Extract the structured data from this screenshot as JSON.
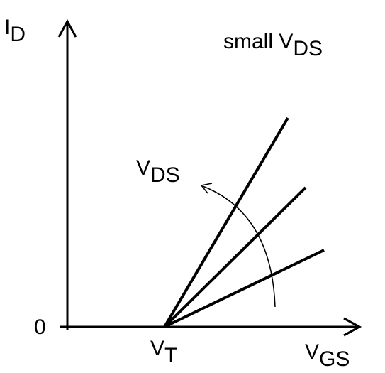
{
  "diagram": {
    "y_axis_label": {
      "main": "I",
      "sub": "D"
    },
    "x_axis_label": {
      "main": "V",
      "sub": "GS"
    },
    "threshold_label": {
      "main": "V",
      "sub": "T"
    },
    "origin_label": "0",
    "condition_label": {
      "prefix": "small V",
      "sub": "DS"
    },
    "arrow_label": {
      "main": "V",
      "sub": "DS"
    },
    "line_count": 3,
    "colors": {
      "stroke": "#000000",
      "background": "#ffffff"
    }
  }
}
